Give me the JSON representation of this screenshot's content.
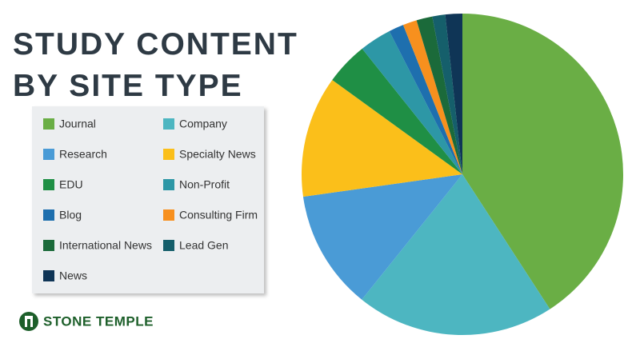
{
  "chart_data": {
    "type": "pie",
    "title": "STUDY CONTENT BY SITE TYPE",
    "series": [
      {
        "name": "Journal",
        "color": "#6aae45",
        "values": [
          40.8
        ]
      },
      {
        "name": "Company",
        "color": "#4db6c1",
        "values": [
          19.9
        ]
      },
      {
        "name": "Research",
        "color": "#4a9bd6",
        "values": [
          12
        ]
      },
      {
        "name": "Specialty News",
        "color": "#fbbf1a",
        "values": [
          12.2
        ]
      },
      {
        "name": "EDU",
        "color": "#1f8f45",
        "values": [
          4.3
        ]
      },
      {
        "name": "Non-Profit",
        "color": "#2d97a6",
        "values": [
          3.2
        ]
      },
      {
        "name": "Blog",
        "color": "#1e6fae",
        "values": [
          1.5
        ]
      },
      {
        "name": "Consulting Firm",
        "color": "#f7901e",
        "values": [
          1.4
        ]
      },
      {
        "name": "International News",
        "color": "#1b6a3a",
        "values": [
          1.6
        ]
      },
      {
        "name": "Lead Gen",
        "color": "#155f6b",
        "values": [
          1.3
        ]
      },
      {
        "name": "News",
        "color": "#0f3556",
        "values": [
          1.7
        ]
      }
    ],
    "legend": "left"
  },
  "brand": "STONE TEMPLE"
}
